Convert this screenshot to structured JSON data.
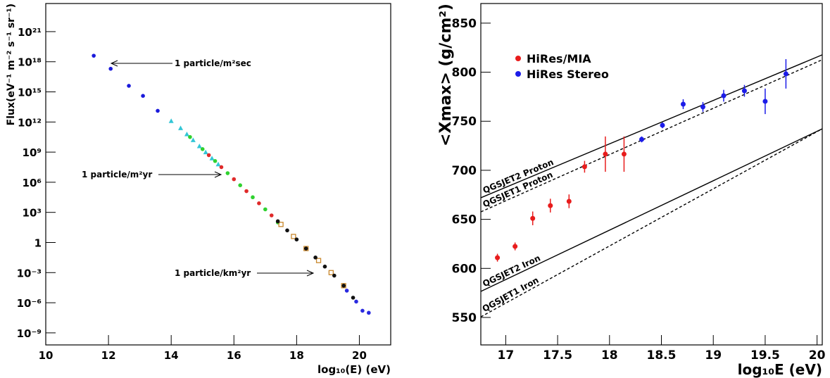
{
  "chart_data": [
    {
      "type": "scatter",
      "logy": true,
      "xlabel": "log₁₀(E) (eV)",
      "ylabel": "Flux(eV⁻¹ m⁻² s⁻¹ sr⁻¹)",
      "xlim": [
        10,
        21
      ],
      "ylim": [
        6.3e-11,
        6.3e+23
      ],
      "xticks": [
        10,
        12,
        14,
        16,
        18,
        20
      ],
      "yticks": [
        {
          "value": 1e+21,
          "label": "10²¹"
        },
        {
          "value": 1e+18,
          "label": "10¹⁸"
        },
        {
          "value": 1000000000000000.0,
          "label": "10¹⁵"
        },
        {
          "value": 1000000000000.0,
          "label": "10¹²"
        },
        {
          "value": 1000000000.0,
          "label": "10⁹"
        },
        {
          "value": 1000000.0,
          "label": "10⁶"
        },
        {
          "value": 1000.0,
          "label": "10³"
        },
        1,
        {
          "value": 0.001,
          "label": "10⁻³"
        },
        {
          "value": 1e-06,
          "label": "10⁻⁶"
        },
        {
          "value": 1e-09,
          "label": "10⁻⁹"
        }
      ],
      "annotations": [
        "1 particle/m²sec",
        "1 particle/m²yr",
        "1 particle/km²yr"
      ],
      "series": [
        {
          "color": "#1a1adb",
          "marker": "circle",
          "x": [
            11.53,
            12.07,
            12.65,
            13.1,
            13.57
          ],
          "values": [
            4e+18,
            2e+17,
            4000000000000000.0,
            400000000000000.0,
            13000000000000.0
          ]
        },
        {
          "color": "#33c6d6",
          "marker": "triangle",
          "x": [
            14.0,
            14.3,
            14.5,
            14.7,
            14.9,
            15.1,
            15.3,
            15.5
          ],
          "values": [
            1300000000000.0,
            250000000000.0,
            63000000000.0,
            16000000000.0,
            4000000000.0,
            1000000000.0,
            250000000.0,
            63000000.0
          ]
        },
        {
          "color": "#2fd12f",
          "marker": "circle",
          "x": [
            14.6,
            15.0,
            15.4,
            15.8,
            16.2,
            16.6,
            17.0,
            17.4
          ],
          "values": [
            32000000000.0,
            2000000000.0,
            130000000.0,
            8000000.0,
            500000.0,
            32000.0,
            2000,
            100
          ]
        },
        {
          "color": "#e02a2a",
          "marker": "circle",
          "x": [
            15.2,
            15.6,
            16.0,
            16.4,
            16.8,
            17.2
          ],
          "values": [
            500000000.0,
            32000000.0,
            2000000.0,
            130000.0,
            8000,
            500
          ]
        },
        {
          "color": "#c8862a",
          "marker": "square",
          "x": [
            17.5,
            17.9,
            18.3,
            18.7,
            19.1,
            19.5
          ],
          "values": [
            63,
            4,
            0.25,
            0.016,
            0.001,
            5e-05
          ]
        },
        {
          "color": "#111111",
          "marker": "circle",
          "x": [
            17.4,
            17.7,
            18.0,
            18.3,
            18.6,
            18.9,
            19.2,
            19.5,
            19.8
          ],
          "values": [
            130,
            16,
            2,
            0.25,
            0.032,
            0.004,
            0.0005,
            5e-05,
            3.2e-06
          ]
        },
        {
          "color": "#2a2ae0",
          "marker": "circle",
          "x": [
            19.6,
            19.9,
            20.1,
            20.3
          ],
          "values": [
            1.6e-05,
            1.3e-06,
            1.6e-07,
            1e-07
          ]
        }
      ]
    },
    {
      "type": "errorbar",
      "xlabel": "log₁₀E (eV)",
      "ylabel": "<Xmax> (g/cm²)",
      "xlim": [
        16.76,
        20.05
      ],
      "ylim": [
        522,
        870
      ],
      "xticks": [
        17,
        17.5,
        18,
        18.5,
        19,
        19.5,
        20
      ],
      "yticks": [
        550,
        600,
        650,
        700,
        750,
        800,
        850
      ],
      "series": [
        {
          "name": "HiRes/MIA",
          "color": "#e81c1c",
          "x": [
            16.92,
            17.09,
            17.26,
            17.43,
            17.61,
            17.76,
            17.96,
            18.14
          ],
          "values": [
            610.9,
            622.4,
            651,
            664,
            668.4,
            703.6,
            716.5,
            716.5
          ],
          "errors": [
            4,
            4,
            7,
            7,
            7,
            6,
            18,
            18
          ]
        },
        {
          "name": "HiRes Stereo",
          "color": "#1c1ce8",
          "x": [
            18.31,
            18.51,
            18.71,
            18.9,
            19.1,
            19.3,
            19.5,
            19.7
          ],
          "values": [
            731.5,
            745.9,
            767.4,
            764.6,
            776,
            781,
            770.3,
            798.3
          ],
          "errors": [
            3,
            3,
            5,
            5,
            6,
            6,
            13,
            15
          ]
        }
      ],
      "lines": [
        {
          "label": "QGSJET2 Proton",
          "style": "solid",
          "x": [
            16.76,
            20.05
          ],
          "values": [
            672,
            817.7
          ]
        },
        {
          "label": "QGSJET1 Proton",
          "style": "dashed",
          "x": [
            16.76,
            20.05
          ],
          "values": [
            657.6,
            812.7
          ]
        },
        {
          "label": "QGSJET2 Iron",
          "style": "solid",
          "x": [
            16.76,
            20.05
          ],
          "values": [
            576.5,
            742.3
          ]
        },
        {
          "label": "QGSJET1 Iron",
          "style": "dashed",
          "x": [
            16.76,
            20.05
          ],
          "values": [
            550.6,
            742.3
          ]
        }
      ]
    }
  ]
}
